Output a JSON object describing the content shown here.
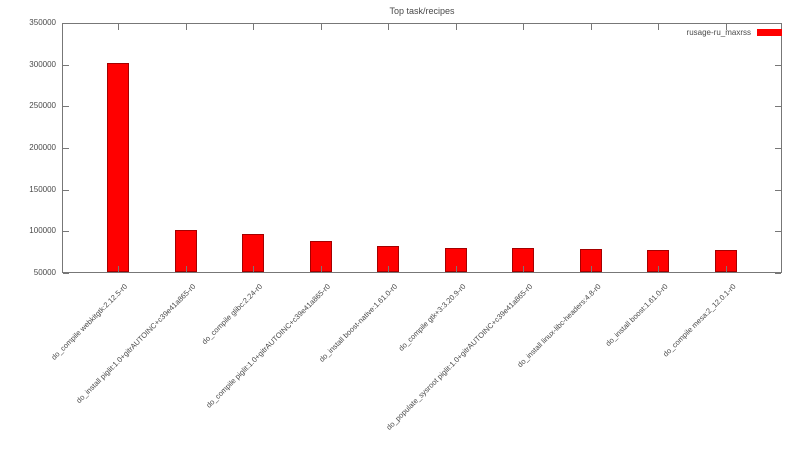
{
  "page": {
    "background": "#ffffff"
  },
  "chart_data": {
    "type": "bar",
    "title": "Top task/recipes",
    "legend": [
      {
        "label": "rusage-ru_maxrss",
        "color": "#ff0000"
      }
    ],
    "legend_position": "top-right-inside",
    "categories": [
      "do_compile webkitgtk:2.12.5-r0",
      "do_install piglit:1.0+gitrAUTOINC+c39e41a865-r0",
      "do_compile glibc:2.24-r0",
      "do_compile piglit:1.0+gitrAUTOINC+c39e41a865-r0",
      "do_install boost-native:1.61.0-r0",
      "do_compile gtk+3:3.20.9-r0",
      "do_populate_sysroot piglit:1.0+gitrAUTOINC+c39e41a865-r0",
      "do_install linux-libc-headers:4.8-r0",
      "do_install boost:1.61.0-r0",
      "do_compile mesa:2_12.0.1-r0"
    ],
    "values": [
      302000,
      101500,
      97000,
      88000,
      82500,
      80500,
      79500,
      78500,
      78000,
      77500
    ],
    "xlabel": "",
    "ylabel": "",
    "ylim": [
      50000,
      350000
    ],
    "yticks": [
      50000,
      100000,
      150000,
      200000,
      250000,
      300000,
      350000
    ],
    "grid": false,
    "bar_color": "#ff0000",
    "bar_border_color": "#a40000",
    "axis_color": "#777777",
    "text_color": "#4a4a4a"
  }
}
